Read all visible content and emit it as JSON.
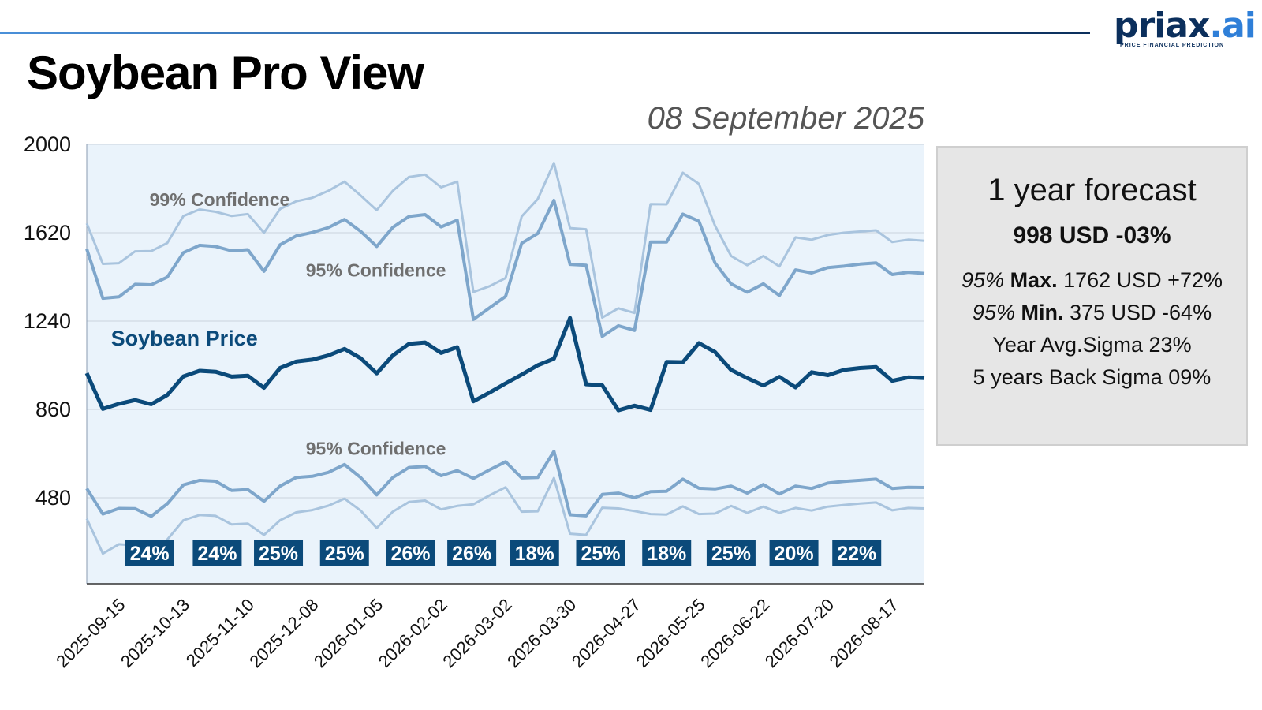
{
  "header": {
    "title": "Soybean Pro View",
    "date": "08 September 2025",
    "logo_text_main": "priax",
    "logo_text_dot": ".ai",
    "logo_tagline": "PRICE FINANCIAL PREDICTION"
  },
  "forecast": {
    "title": "1 year forecast",
    "main": "998 USD -03%",
    "max_prefix": "95%",
    "max_label": "Max.",
    "max_value": "1762 USD +72%",
    "min_prefix": "95%",
    "min_label": "Min.",
    "min_value": "375 USD -64%",
    "avg_sigma": "Year Avg.Sigma 23%",
    "back_sigma": "5 years Back Sigma 09%"
  },
  "colors": {
    "price": "#0b4a7a",
    "conf95": "#7ea6cb",
    "conf99": "#a9c4de",
    "plot_bg": "#eaf3fb",
    "badge_bg": "#0b4a7a",
    "badge_text": "#ffffff"
  },
  "chart_data": {
    "type": "line",
    "ylim": [
      110,
      2000
    ],
    "yticks": [
      480,
      860,
      1240,
      1620,
      2000
    ],
    "grid": true,
    "n_points": 53,
    "x_tick_labels": [
      "2025-09-15",
      "2025-10-13",
      "2025-11-10",
      "2025-12-08",
      "2026-01-05",
      "2026-02-02",
      "2026-03-02",
      "2026-03-30",
      "2026-04-27",
      "2026-05-25",
      "2026-06-22",
      "2026-07-20",
      "2026-08-17"
    ],
    "x_tick_indices": [
      0,
      4,
      8,
      12,
      16,
      20,
      24,
      28,
      32,
      36,
      40,
      44,
      48
    ],
    "series": [
      {
        "name": "Soybean Price",
        "style": "price",
        "values": [
          1016,
          862,
          884,
          900,
          882,
          922,
          1002,
          1026,
          1022,
          1001,
          1005,
          953,
          1038,
          1066,
          1074,
          1092,
          1120,
          1080,
          1015,
          1092,
          1142,
          1148,
          1103,
          1128,
          895,
          932,
          972,
          1010,
          1050,
          1078,
          1253,
          968,
          964,
          856,
          876,
          858,
          1064,
          1063,
          1145,
          1107,
          1030,
          995,
          963,
          1000,
          955,
          1020,
          1007,
          1030,
          1038,
          1042,
          983,
          998,
          995
        ]
      },
      {
        "name": "95% Confidence",
        "style": "conf95",
        "values": [
          1550,
          1338,
          1344,
          1398,
          1396,
          1429,
          1534,
          1566,
          1561,
          1542,
          1547,
          1454,
          1568,
          1606,
          1621,
          1642,
          1677,
          1626,
          1561,
          1643,
          1690,
          1698,
          1645,
          1674,
          1247,
          1297,
          1346,
          1575,
          1617,
          1759,
          1484,
          1480,
          1174,
          1220,
          1200,
          1580,
          1580,
          1700,
          1670,
          1490,
          1400,
          1364,
          1400,
          1350,
          1460,
          1447,
          1470,
          1476,
          1485,
          1490,
          1440,
          1450,
          1445
        ]
      },
      {
        "name": "99% Confidence",
        "style": "conf99",
        "values": [
          1660,
          1486,
          1489,
          1540,
          1541,
          1576,
          1692,
          1720,
          1710,
          1692,
          1700,
          1620,
          1722,
          1755,
          1770,
          1800,
          1840,
          1780,
          1717,
          1800,
          1860,
          1870,
          1815,
          1840,
          1365,
          1390,
          1425,
          1690,
          1765,
          1920,
          1640,
          1635,
          1255,
          1295,
          1275,
          1743,
          1742,
          1878,
          1830,
          1650,
          1520,
          1480,
          1520,
          1475,
          1600,
          1590,
          1610,
          1620,
          1625,
          1630,
          1580,
          1590,
          1585
        ]
      },
      {
        "name": "95% Confidence",
        "style": "conf95",
        "values": [
          520,
          410,
          434,
          433,
          400,
          454,
          535,
          555,
          551,
          511,
          515,
          465,
          530,
          567,
          572,
          589,
          623,
          567,
          492,
          567,
          610,
          615,
          575,
          597,
          563,
          600,
          635,
          565,
          567,
          680,
          407,
          402,
          494,
          500,
          480,
          506,
          508,
          560,
          521,
          518,
          530,
          500,
          537,
          496,
          530,
          520,
          543,
          550,
          555,
          560,
          520,
          525,
          524
        ]
      },
      {
        "name": "99% Confidence",
        "style": "conf99",
        "values": [
          390,
          240,
          280,
          275,
          233,
          300,
          383,
          406,
          402,
          365,
          369,
          320,
          383,
          417,
          427,
          446,
          476,
          425,
          350,
          420,
          462,
          468,
          430,
          445,
          452,
          490,
          525,
          420,
          422,
          565,
          325,
          320,
          437,
          434,
          423,
          410,
          408,
          443,
          410,
          412,
          445,
          415,
          442,
          415,
          436,
          425,
          442,
          449,
          455,
          460,
          426,
          436,
          434
        ]
      }
    ],
    "annotations": [
      {
        "text": "99% Confidence",
        "x": 3.9,
        "y": 1735
      },
      {
        "text": "95% Confidence",
        "x": 13.6,
        "y": 1432
      },
      {
        "text": "Soybean Price",
        "x": 1.5,
        "y": 1135
      },
      {
        "text": "95% Confidence",
        "x": 13.6,
        "y": 665
      }
    ],
    "badges": [
      {
        "text": "24%",
        "x": 3.9
      },
      {
        "text": "24%",
        "x": 8.1
      },
      {
        "text": "25%",
        "x": 11.9
      },
      {
        "text": "25%",
        "x": 16.0
      },
      {
        "text": "26%",
        "x": 20.1
      },
      {
        "text": "26%",
        "x": 23.9
      },
      {
        "text": "18%",
        "x": 27.8
      },
      {
        "text": "25%",
        "x": 31.9
      },
      {
        "text": "18%",
        "x": 36.0
      },
      {
        "text": "25%",
        "x": 40.0
      },
      {
        "text": "20%",
        "x": 43.9
      },
      {
        "text": "22%",
        "x": 47.8
      }
    ]
  }
}
